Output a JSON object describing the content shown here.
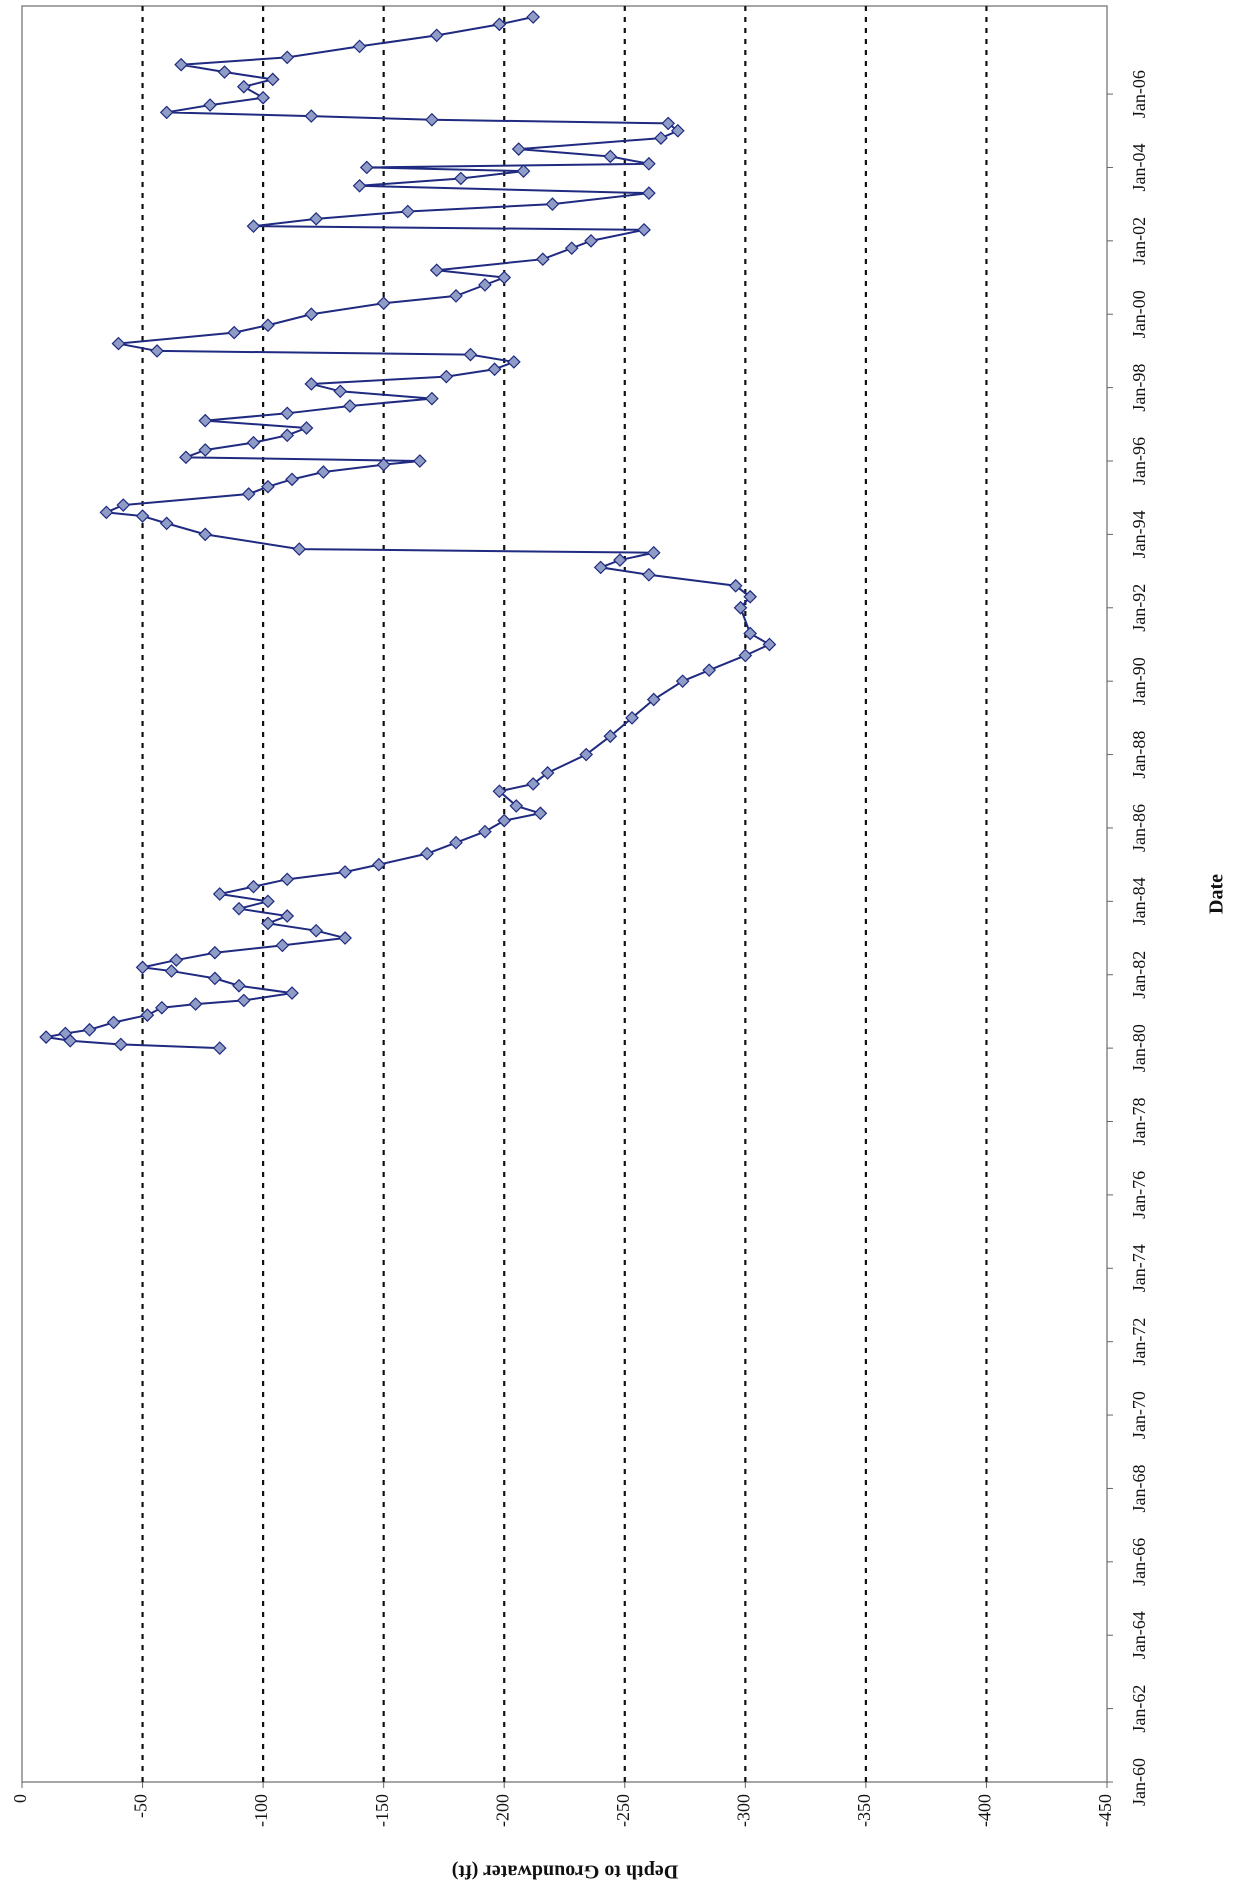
{
  "chart_data": {
    "type": "line",
    "x_label": "Date",
    "y_label": "Depth to Groundwater (ft)",
    "series": [
      {
        "name": "Depth to Groundwater",
        "color": "#1f2a80",
        "marker_color": "#8e9cc6",
        "x": [
          1980.0,
          1980.1,
          1980.2,
          1980.3,
          1980.4,
          1980.5,
          1980.7,
          1980.9,
          1981.1,
          1981.2,
          1981.3,
          1981.5,
          1981.7,
          1981.9,
          1982.1,
          1982.2,
          1982.4,
          1982.6,
          1982.8,
          1983.0,
          1983.2,
          1983.4,
          1983.6,
          1983.8,
          1984.0,
          1984.2,
          1984.4,
          1984.6,
          1984.8,
          1985.0,
          1985.3,
          1985.6,
          1985.9,
          1986.2,
          1986.4,
          1986.6,
          1987.0,
          1987.2,
          1987.5,
          1988.0,
          1988.5,
          1989.0,
          1989.5,
          1990.0,
          1990.3,
          1990.7,
          1991.0,
          1991.3,
          1992.0,
          1992.3,
          1992.6,
          1992.9,
          1993.1,
          1993.3,
          1993.5,
          1993.6,
          1994.0,
          1994.3,
          1994.5,
          1994.6,
          1994.8,
          1995.1,
          1995.3,
          1995.5,
          1995.7,
          1995.9,
          1996.0,
          1996.1,
          1996.3,
          1996.5,
          1996.7,
          1996.9,
          1997.1,
          1997.3,
          1997.5,
          1997.7,
          1997.9,
          1998.1,
          1998.3,
          1998.5,
          1998.7,
          1998.9,
          1999.0,
          1999.2,
          1999.5,
          1999.7,
          2000.0,
          2000.3,
          2000.5,
          2000.8,
          2001.0,
          2001.2,
          2001.5,
          2001.8,
          2002.0,
          2002.3,
          2002.4,
          2002.6,
          2002.8,
          2003.0,
          2003.3,
          2003.5,
          2003.7,
          2003.9,
          2004.0,
          2004.1,
          2004.3,
          2004.5,
          2004.8,
          2005.0,
          2005.2,
          2005.3,
          2005.4,
          2005.5,
          2005.7,
          2005.9,
          2006.2,
          2006.4,
          2006.6,
          2006.8,
          2007.0,
          2007.3,
          2007.6,
          2007.9,
          2008.1
        ],
        "values": [
          -82,
          -41,
          -20,
          -10,
          -18,
          -28,
          -38,
          -52,
          -58,
          -72,
          -92,
          -112,
          -90,
          -80,
          -62,
          -50,
          -64,
          -80,
          -108,
          -134,
          -122,
          -102,
          -110,
          -90,
          -102,
          -82,
          -96,
          -110,
          -134,
          -148,
          -168,
          -180,
          -192,
          -200,
          -215,
          -205,
          -198,
          -212,
          -218,
          -234,
          -244,
          -253,
          -262,
          -274,
          -285,
          -300,
          -310,
          -302,
          -298,
          -302,
          -296,
          -260,
          -240,
          -248,
          -262,
          -115,
          -76,
          -60,
          -50,
          -35,
          -42,
          -94,
          -102,
          -112,
          -125,
          -150,
          -165,
          -68,
          -76,
          -96,
          -110,
          -118,
          -76,
          -110,
          -136,
          -170,
          -132,
          -120,
          -176,
          -196,
          -204,
          -186,
          -56,
          -40,
          -88,
          -102,
          -120,
          -150,
          -180,
          -192,
          -200,
          -172,
          -216,
          -228,
          -236,
          -258,
          -96,
          -122,
          -160,
          -220,
          -260,
          -140,
          -182,
          -208,
          -143,
          -260,
          -244,
          -206,
          -265,
          -272,
          -268,
          -170,
          -120,
          -60,
          -78,
          -100,
          -92,
          -104,
          -84,
          -66,
          -110,
          -140,
          -172,
          -198,
          -212
        ]
      }
    ],
    "xlim": [
      1960,
      2008.4
    ],
    "xticks": [
      {
        "value": 1960,
        "label": "Jan-60"
      },
      {
        "value": 1962,
        "label": "Jan-62"
      },
      {
        "value": 1964,
        "label": "Jan-64"
      },
      {
        "value": 1966,
        "label": "Jan-66"
      },
      {
        "value": 1968,
        "label": "Jan-68"
      },
      {
        "value": 1970,
        "label": "Jan-70"
      },
      {
        "value": 1972,
        "label": "Jan-72"
      },
      {
        "value": 1974,
        "label": "Jan-74"
      },
      {
        "value": 1976,
        "label": "Jan-76"
      },
      {
        "value": 1978,
        "label": "Jan-78"
      },
      {
        "value": 1980,
        "label": "Jan-80"
      },
      {
        "value": 1982,
        "label": "Jan-82"
      },
      {
        "value": 1984,
        "label": "Jan-84"
      },
      {
        "value": 1986,
        "label": "Jan-86"
      },
      {
        "value": 1988,
        "label": "Jan-88"
      },
      {
        "value": 1990,
        "label": "Jan-90"
      },
      {
        "value": 1992,
        "label": "Jan-92"
      },
      {
        "value": 1994,
        "label": "Jan-94"
      },
      {
        "value": 1996,
        "label": "Jan-96"
      },
      {
        "value": 1998,
        "label": "Jan-98"
      },
      {
        "value": 2000,
        "label": "Jan-00"
      },
      {
        "value": 2002,
        "label": "Jan-02"
      },
      {
        "value": 2004,
        "label": "Jan-04"
      },
      {
        "value": 2006,
        "label": "Jan-06"
      }
    ],
    "ylim": [
      0,
      -450
    ],
    "yticks": [
      0,
      -50,
      -100,
      -150,
      -200,
      -250,
      -300,
      -350,
      -400,
      -450
    ],
    "grid": true,
    "rotation": -90
  }
}
